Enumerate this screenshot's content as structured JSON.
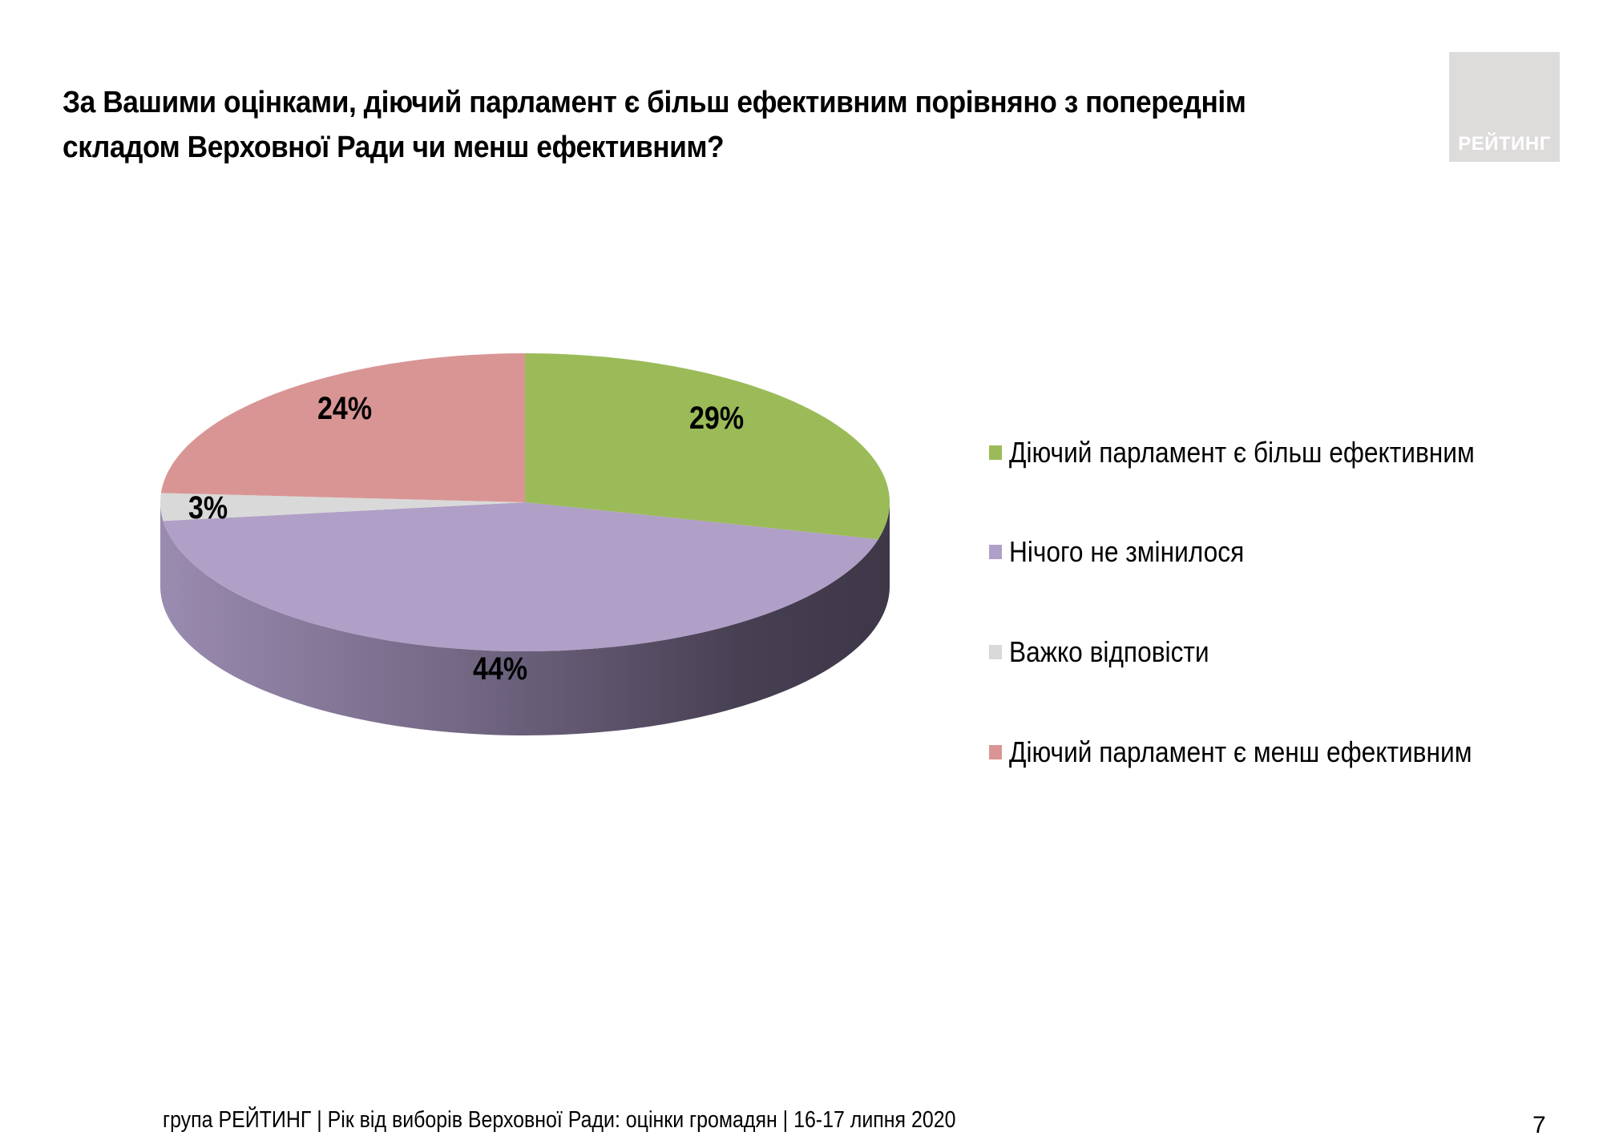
{
  "slide": {
    "title": "За Вашими оцінками, діючий парламент є більш ефективним порівняно з попереднім складом Верховної Ради чи менш ефективним?",
    "title_lines": [
      "За Вашими оцінками, діючий парламент є більш ефективним порівняно з попереднім",
      "складом Верховної Ради чи менш ефективним?"
    ],
    "logo_text": "РЕЙТИНГ",
    "footer": "група РЕЙТИНГ | Рік від виборів Верховної Ради: оцінки громадян | 16-17 липня 2020",
    "page_number": "7"
  },
  "legend": {
    "items": [
      {
        "label": "Діючий  парламент є більш ефективним",
        "color": "#9bbb59"
      },
      {
        "label": "Нічого не змінилося",
        "color": "#b09fc6"
      },
      {
        "label": "Важко відповісти",
        "color": "#d9d9d9"
      },
      {
        "label": "Діючий  парламент є менш ефективним",
        "color": "#d99594"
      }
    ]
  },
  "labels": {
    "more_effective": "29%",
    "nothing_changed": "44%",
    "hard_to_say": "3%",
    "less_effective": "24%"
  },
  "chart_data": {
    "type": "pie",
    "title": "За Вашими оцінками, діючий парламент є більш ефективним порівняно з попереднім складом Верховної Ради чи менш ефективним?",
    "style": "3d",
    "categories": [
      "Діючий  парламент є більш ефективним",
      "Нічого не змінилося",
      "Важко відповісти",
      "Діючий  парламент є менш ефективним"
    ],
    "values": [
      29,
      44,
      3,
      24
    ],
    "unit": "%",
    "colors": [
      "#9bbb59",
      "#b09fc6",
      "#d9d9d9",
      "#d99594"
    ],
    "legend_position": "right",
    "data_labels": [
      "29%",
      "44%",
      "3%",
      "24%"
    ]
  }
}
